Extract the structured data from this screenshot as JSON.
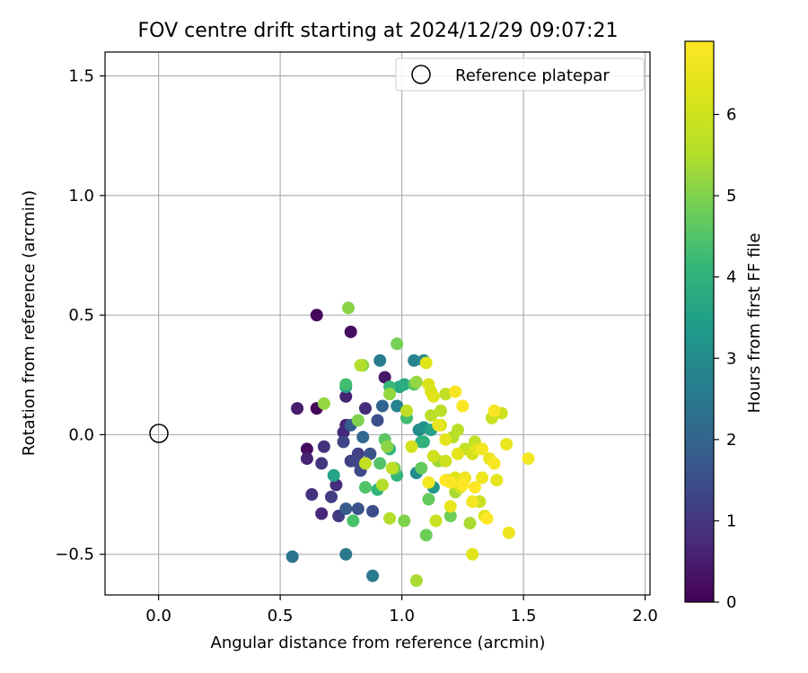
{
  "chart_data": {
    "type": "scatter",
    "title": "FOV centre drift starting at 2024/12/29 09:07:21",
    "xlabel": "Angular distance from reference (arcmin)",
    "ylabel": "Rotation from reference (arcmin)",
    "xlim": [
      -0.22,
      2.02
    ],
    "ylim": [
      -0.67,
      1.6
    ],
    "xticks": [
      0.0,
      0.5,
      1.0,
      1.5,
      2.0
    ],
    "xtick_labels": [
      "0.0",
      "0.5",
      "1.0",
      "1.5",
      "2.0"
    ],
    "yticks": [
      -0.5,
      0.0,
      0.5,
      1.0,
      1.5
    ],
    "ytick_labels": [
      "−0.5",
      "0.0",
      "0.5",
      "1.0",
      "1.5"
    ],
    "grid": true,
    "legend": {
      "position": "top-right",
      "label": "Reference platepar"
    },
    "reference_point": {
      "x": 0.0,
      "y": 0.0
    },
    "colorbar": {
      "label": "Hours from first FF file",
      "range": [
        0,
        6.9
      ],
      "ticks": [
        0,
        1,
        2,
        3,
        4,
        5,
        6
      ],
      "tick_labels": [
        "0",
        "1",
        "2",
        "3",
        "4",
        "5",
        "6"
      ],
      "colormap": "viridis"
    },
    "points": [
      {
        "x": 0.65,
        "y": 0.5,
        "h": 0.1
      },
      {
        "x": 0.65,
        "y": 0.11,
        "h": 0.1
      },
      {
        "x": 0.79,
        "y": 0.43,
        "h": 0.2
      },
      {
        "x": 0.61,
        "y": -0.06,
        "h": 0.2
      },
      {
        "x": 0.93,
        "y": 0.24,
        "h": 0.4
      },
      {
        "x": 0.57,
        "y": 0.11,
        "h": 0.5
      },
      {
        "x": 0.61,
        "y": -0.1,
        "h": 0.6
      },
      {
        "x": 0.77,
        "y": 0.16,
        "h": 0.6
      },
      {
        "x": 0.77,
        "y": 0.04,
        "h": 0.6
      },
      {
        "x": 0.76,
        "y": 0.01,
        "h": 0.7
      },
      {
        "x": 0.67,
        "y": -0.33,
        "h": 0.7
      },
      {
        "x": 0.68,
        "y": -0.05,
        "h": 0.9
      },
      {
        "x": 0.85,
        "y": 0.11,
        "h": 0.8
      },
      {
        "x": 0.73,
        "y": -0.21,
        "h": 0.8
      },
      {
        "x": 0.63,
        "y": -0.25,
        "h": 0.9
      },
      {
        "x": 0.67,
        "y": -0.12,
        "h": 1.0
      },
      {
        "x": 0.71,
        "y": -0.26,
        "h": 1.1
      },
      {
        "x": 0.74,
        "y": -0.34,
        "h": 1.1
      },
      {
        "x": 0.79,
        "y": -0.11,
        "h": 1.2
      },
      {
        "x": 0.82,
        "y": -0.08,
        "h": 1.2
      },
      {
        "x": 0.76,
        "y": -0.03,
        "h": 1.3
      },
      {
        "x": 0.81,
        "y": -0.11,
        "h": 1.3
      },
      {
        "x": 0.83,
        "y": -0.15,
        "h": 1.4
      },
      {
        "x": 0.88,
        "y": -0.32,
        "h": 1.5
      },
      {
        "x": 0.9,
        "y": 0.06,
        "h": 1.5
      },
      {
        "x": 0.87,
        "y": -0.08,
        "h": 1.6
      },
      {
        "x": 0.82,
        "y": -0.31,
        "h": 1.6
      },
      {
        "x": 0.77,
        "y": -0.31,
        "h": 1.8
      },
      {
        "x": 0.79,
        "y": 0.04,
        "h": 1.8
      },
      {
        "x": 0.92,
        "y": 0.12,
        "h": 2.0
      },
      {
        "x": 0.84,
        "y": -0.01,
        "h": 2.1
      },
      {
        "x": 0.55,
        "y": -0.51,
        "h": 2.4
      },
      {
        "x": 0.77,
        "y": -0.5,
        "h": 2.5
      },
      {
        "x": 0.88,
        "y": -0.59,
        "h": 2.6
      },
      {
        "x": 0.91,
        "y": 0.31,
        "h": 2.6
      },
      {
        "x": 0.98,
        "y": 0.12,
        "h": 2.8
      },
      {
        "x": 1.05,
        "y": 0.31,
        "h": 2.8
      },
      {
        "x": 1.09,
        "y": 0.31,
        "h": 2.9
      },
      {
        "x": 1.07,
        "y": 0.02,
        "h": 3.0
      },
      {
        "x": 1.06,
        "y": -0.16,
        "h": 3.0
      },
      {
        "x": 1.09,
        "y": 0.03,
        "h": 3.2
      },
      {
        "x": 1.13,
        "y": -0.22,
        "h": 3.3
      },
      {
        "x": 0.77,
        "y": 0.2,
        "h": 3.5
      },
      {
        "x": 0.72,
        "y": -0.17,
        "h": 3.6
      },
      {
        "x": 1.12,
        "y": 0.02,
        "h": 3.6
      },
      {
        "x": 0.99,
        "y": 0.2,
        "h": 3.7
      },
      {
        "x": 1.01,
        "y": 0.21,
        "h": 3.8
      },
      {
        "x": 1.08,
        "y": -0.03,
        "h": 3.9
      },
      {
        "x": 1.09,
        "y": -0.03,
        "h": 4.0
      },
      {
        "x": 0.95,
        "y": -0.06,
        "h": 4.0
      },
      {
        "x": 0.98,
        "y": -0.17,
        "h": 4.1
      },
      {
        "x": 0.9,
        "y": -0.23,
        "h": 4.1
      },
      {
        "x": 0.95,
        "y": 0.2,
        "h": 4.2
      },
      {
        "x": 1.02,
        "y": 0.07,
        "h": 4.3
      },
      {
        "x": 0.77,
        "y": 0.21,
        "h": 4.3
      },
      {
        "x": 0.8,
        "y": -0.36,
        "h": 4.4
      },
      {
        "x": 0.85,
        "y": -0.22,
        "h": 4.5
      },
      {
        "x": 0.91,
        "y": -0.12,
        "h": 4.5
      },
      {
        "x": 0.93,
        "y": -0.02,
        "h": 4.6
      },
      {
        "x": 1.05,
        "y": 0.21,
        "h": 4.6
      },
      {
        "x": 1.08,
        "y": -0.14,
        "h": 4.7
      },
      {
        "x": 1.11,
        "y": -0.27,
        "h": 4.7
      },
      {
        "x": 1.1,
        "y": -0.42,
        "h": 4.8
      },
      {
        "x": 1.2,
        "y": -0.34,
        "h": 4.8
      },
      {
        "x": 0.98,
        "y": 0.38,
        "h": 4.9
      },
      {
        "x": 0.97,
        "y": -0.14,
        "h": 4.9
      },
      {
        "x": 0.82,
        "y": 0.06,
        "h": 5.0
      },
      {
        "x": 1.01,
        "y": -0.36,
        "h": 5.0
      },
      {
        "x": 0.94,
        "y": -0.05,
        "h": 5.1
      },
      {
        "x": 0.84,
        "y": 0.29,
        "h": 5.1
      },
      {
        "x": 0.78,
        "y": 0.53,
        "h": 5.1
      },
      {
        "x": 0.68,
        "y": 0.13,
        "h": 5.2
      },
      {
        "x": 0.95,
        "y": 0.17,
        "h": 5.2
      },
      {
        "x": 1.06,
        "y": 0.22,
        "h": 5.2
      },
      {
        "x": 1.15,
        "y": -0.11,
        "h": 5.3
      },
      {
        "x": 1.19,
        "y": -0.19,
        "h": 5.3
      },
      {
        "x": 1.22,
        "y": -0.24,
        "h": 5.4
      },
      {
        "x": 1.28,
        "y": -0.37,
        "h": 5.4
      },
      {
        "x": 1.06,
        "y": -0.61,
        "h": 5.4
      },
      {
        "x": 0.95,
        "y": -0.35,
        "h": 5.5
      },
      {
        "x": 1.21,
        "y": -0.01,
        "h": 5.5
      },
      {
        "x": 0.92,
        "y": -0.21,
        "h": 5.5
      },
      {
        "x": 0.83,
        "y": 0.29,
        "h": 5.5
      },
      {
        "x": 1.16,
        "y": 0.1,
        "h": 5.6
      },
      {
        "x": 1.23,
        "y": 0.02,
        "h": 5.6
      },
      {
        "x": 1.12,
        "y": 0.08,
        "h": 5.6
      },
      {
        "x": 1.18,
        "y": 0.17,
        "h": 5.7
      },
      {
        "x": 1.02,
        "y": 0.1,
        "h": 5.7
      },
      {
        "x": 0.96,
        "y": -0.14,
        "h": 5.7
      },
      {
        "x": 0.85,
        "y": -0.12,
        "h": 5.8
      },
      {
        "x": 1.26,
        "y": -0.06,
        "h": 5.8
      },
      {
        "x": 1.3,
        "y": -0.03,
        "h": 5.8
      },
      {
        "x": 1.32,
        "y": -0.28,
        "h": 5.9
      },
      {
        "x": 1.14,
        "y": -0.36,
        "h": 5.9
      },
      {
        "x": 1.37,
        "y": 0.07,
        "h": 5.9
      },
      {
        "x": 1.41,
        "y": 0.09,
        "h": 6.0
      },
      {
        "x": 1.18,
        "y": -0.11,
        "h": 6.0
      },
      {
        "x": 1.13,
        "y": -0.09,
        "h": 6.0
      },
      {
        "x": 1.04,
        "y": -0.05,
        "h": 6.1
      },
      {
        "x": 1.29,
        "y": -0.08,
        "h": 6.1
      },
      {
        "x": 1.24,
        "y": -0.22,
        "h": 6.1
      },
      {
        "x": 1.16,
        "y": 0.04,
        "h": 6.2
      },
      {
        "x": 1.11,
        "y": 0.21,
        "h": 6.2
      },
      {
        "x": 1.12,
        "y": 0.18,
        "h": 6.2
      },
      {
        "x": 1.13,
        "y": 0.16,
        "h": 6.3
      },
      {
        "x": 1.22,
        "y": -0.18,
        "h": 6.3
      },
      {
        "x": 1.34,
        "y": -0.34,
        "h": 6.3
      },
      {
        "x": 1.29,
        "y": -0.5,
        "h": 6.3
      },
      {
        "x": 1.1,
        "y": 0.3,
        "h": 6.3
      },
      {
        "x": 1.23,
        "y": -0.08,
        "h": 6.4
      },
      {
        "x": 1.39,
        "y": -0.19,
        "h": 6.4
      },
      {
        "x": 1.31,
        "y": -0.06,
        "h": 6.4
      },
      {
        "x": 1.18,
        "y": -0.02,
        "h": 6.4
      },
      {
        "x": 1.15,
        "y": 0.04,
        "h": 6.5
      },
      {
        "x": 1.2,
        "y": -0.3,
        "h": 6.5
      },
      {
        "x": 1.43,
        "y": -0.04,
        "h": 6.5
      },
      {
        "x": 1.44,
        "y": -0.41,
        "h": 6.6
      },
      {
        "x": 1.33,
        "y": -0.18,
        "h": 6.6
      },
      {
        "x": 1.36,
        "y": -0.1,
        "h": 6.6
      },
      {
        "x": 1.26,
        "y": -0.18,
        "h": 6.6
      },
      {
        "x": 1.33,
        "y": -0.06,
        "h": 6.7
      },
      {
        "x": 1.11,
        "y": -0.2,
        "h": 6.7
      },
      {
        "x": 1.29,
        "y": -0.28,
        "h": 6.7
      },
      {
        "x": 1.52,
        "y": -0.1,
        "h": 6.7
      },
      {
        "x": 1.38,
        "y": -0.12,
        "h": 6.8
      },
      {
        "x": 1.38,
        "y": 0.1,
        "h": 6.8
      },
      {
        "x": 1.22,
        "y": 0.18,
        "h": 6.8
      },
      {
        "x": 1.25,
        "y": 0.12,
        "h": 6.8
      },
      {
        "x": 1.2,
        "y": -0.2,
        "h": 6.9
      },
      {
        "x": 1.25,
        "y": -0.21,
        "h": 6.9
      },
      {
        "x": 1.35,
        "y": -0.35,
        "h": 6.9
      },
      {
        "x": 1.18,
        "y": -0.19,
        "h": 6.9
      },
      {
        "x": 1.3,
        "y": -0.22,
        "h": 6.9
      }
    ]
  }
}
